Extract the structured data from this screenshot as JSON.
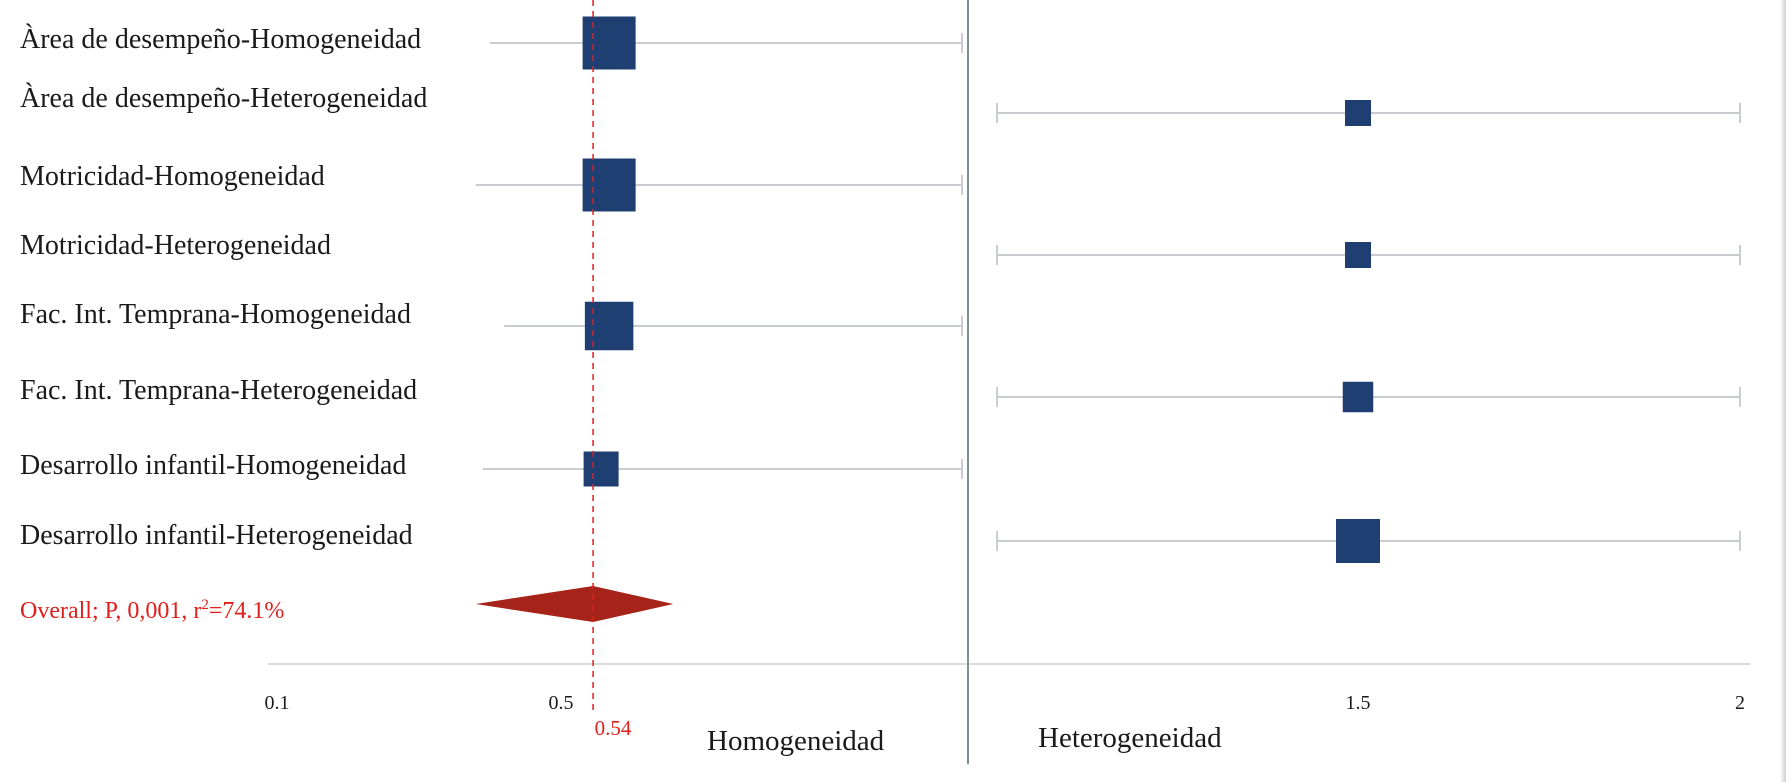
{
  "chart_data": {
    "type": "forest",
    "rows": [
      {
        "label": "Àrea de desempeño-Homogeneidad",
        "estimate": 0.56,
        "ci": [
          0.4,
          1.0
        ],
        "weight": 5
      },
      {
        "label": "Àrea de desempeño-Heterogeneidad",
        "estimate": 1.5,
        "ci": [
          1.03,
          2.0
        ],
        "weight": 2
      },
      {
        "label": "Motricidad-Homogeneidad",
        "estimate": 0.56,
        "ci": [
          0.38,
          1.0
        ],
        "weight": 5
      },
      {
        "label": "Motricidad-Heterogeneidad",
        "estimate": 1.5,
        "ci": [
          1.03,
          2.0
        ],
        "weight": 2
      },
      {
        "label": "Fac. Int. Temprana-Homogeneidad",
        "estimate": 0.56,
        "ci": [
          0.42,
          1.0
        ],
        "weight": 4.5
      },
      {
        "label": "Fac. Int. Temprana-Heterogeneidad",
        "estimate": 1.5,
        "ci": [
          1.03,
          2.0
        ],
        "weight": 2.5
      },
      {
        "label": "Desarrollo infantil-Homogeneidad",
        "estimate": 0.55,
        "ci": [
          0.39,
          1.0
        ],
        "weight": 3
      },
      {
        "label": "Desarrollo infantil-Heterogeneidad",
        "estimate": 1.5,
        "ci": [
          1.03,
          2.0
        ],
        "weight": 4
      }
    ],
    "overall": {
      "label_prefix": "Overall; P, 0,001, r",
      "label_sup": "2",
      "label_suffix": "=74.1%",
      "estimate": 0.54,
      "ci": [
        0.38,
        0.64
      ]
    },
    "reference_value": 0.54,
    "reference_label": "0.54",
    "null_line": 1.0,
    "x_ticks": [
      {
        "value": 0.1,
        "label": "0.1"
      },
      {
        "value": 0.5,
        "label": "0.5"
      },
      {
        "value": 1.5,
        "label": "1.5"
      },
      {
        "value": 2,
        "label": "2"
      }
    ],
    "side_labels": {
      "left": "Homogeneidad",
      "right": "Heterogeneidad"
    },
    "colors": {
      "marker": "#1f3f72",
      "diamond": "#a6231a",
      "reference": "#e0201c",
      "ci_line": "#c9cdd2",
      "null_line": "#7f8c99",
      "axis": "#d8dadd"
    }
  }
}
